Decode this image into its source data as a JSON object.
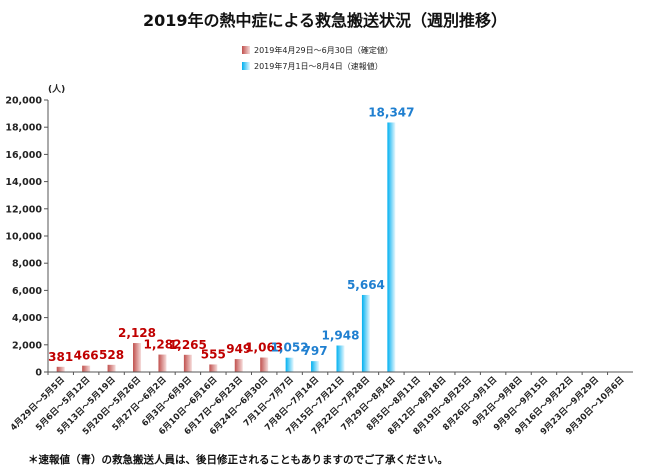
{
  "chart_data": {
    "type": "bar",
    "title": "2019年の熱中症による救急搬送状況（週別推移）",
    "y_unit_label": "(人)",
    "ylim": [
      0,
      20000
    ],
    "y_ticks": [
      0,
      2000,
      4000,
      6000,
      8000,
      10000,
      12000,
      14000,
      16000,
      18000,
      20000
    ],
    "y_tick_labels": [
      "0",
      "2,000",
      "4,000",
      "6,000",
      "8,000",
      "10,000",
      "12,000",
      "14,000",
      "16,000",
      "18,000",
      "20,000"
    ],
    "categories": [
      "4月29日～5月5日",
      "5月6日～5月12日",
      "5月13日～5月19日",
      "5月20日～5月26日",
      "5月27日～6月2日",
      "6月3日～6月9日",
      "6月10日～6月16日",
      "6月17日～6月23日",
      "6月24日～6月30日",
      "7月1日～7月7日",
      "7月8日～7月14日",
      "7月15日～7月21日",
      "7月22日～7月28日",
      "7月29日～8月4日",
      "8月5日～8月11日",
      "8月12日～8月18日",
      "8月19日～8月25日",
      "8月26日～9月1日",
      "9月2日～9月8日",
      "9月9日～9月15日",
      "9月16日～9月22日",
      "9月23日～9月29日",
      "9月30日～10月6日"
    ],
    "series": [
      {
        "name": "2019年4月29日～6月30日（確定値）",
        "color": "#c0504d",
        "label_color": "#c00000",
        "values": [
          381,
          466,
          528,
          2128,
          1282,
          1265,
          555,
          949,
          1063,
          null,
          null,
          null,
          null,
          null,
          null,
          null,
          null,
          null,
          null,
          null,
          null,
          null,
          null
        ],
        "labels": [
          "381",
          "466",
          "528",
          "2,128",
          "1,282",
          "1,265",
          "555",
          "949",
          "1,063",
          "",
          "",
          "",
          "",
          "",
          "",
          "",
          "",
          "",
          "",
          "",
          "",
          "",
          ""
        ]
      },
      {
        "name": "2019年7月1日～8月4日（速報値）",
        "color": "#00b0f0",
        "label_color": "#1f7fd0",
        "values": [
          null,
          null,
          null,
          null,
          null,
          null,
          null,
          null,
          null,
          1052,
          797,
          1948,
          5664,
          18347,
          null,
          null,
          null,
          null,
          null,
          null,
          null,
          null,
          null
        ],
        "labels": [
          "",
          "",
          "",
          "",
          "",
          "",
          "",
          "",
          "",
          "1,052",
          "797",
          "1,948",
          "5,664",
          "18,347",
          "",
          "",
          "",
          "",
          "",
          "",
          "",
          "",
          ""
        ]
      }
    ]
  },
  "footnote": "＊速報値（青）の救急搬送人員は、後日修正されることもありますのでご了承ください。"
}
